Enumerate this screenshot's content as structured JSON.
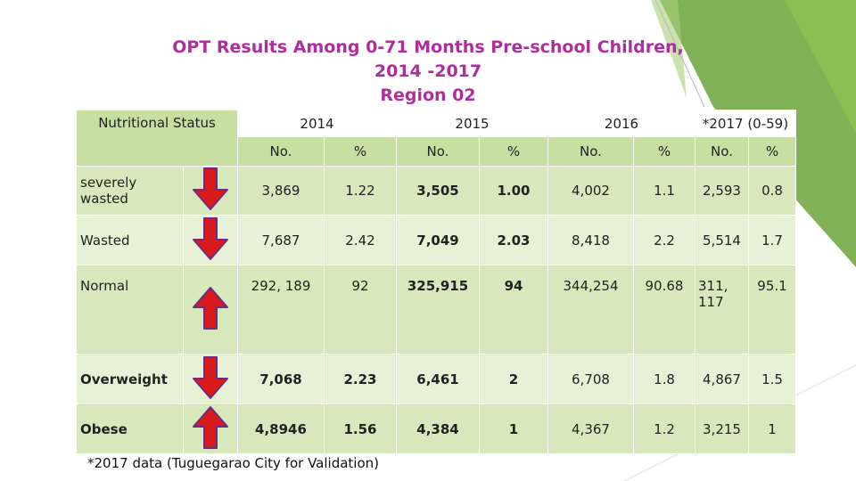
{
  "title_lines": [
    "OPT Results Among 0-71  Months Pre-school  Children,",
    "2014 -2017",
    "Region 02"
  ],
  "colors": {
    "title": "#ad2e9f",
    "accent_green": "#6aa33a",
    "arrow_red": "#d91a1a",
    "table_row": "#d8e8bd"
  },
  "table": {
    "status_header": "Nutritional Status",
    "years": [
      "2014",
      "2015",
      "2016",
      "*2017 (0-59)"
    ],
    "subheaders": [
      "No.",
      "%",
      "No.",
      "%",
      "No.",
      "%",
      "No.",
      "%"
    ],
    "rows": [
      {
        "label": "severely wasted",
        "arrow": "down",
        "cells": [
          "3,869",
          "1.22",
          "3,505",
          "1.00",
          "4,002",
          "1.1",
          "2,593",
          "0.8"
        ]
      },
      {
        "label": "Wasted",
        "arrow": "down",
        "cells": [
          "7,687",
          "2.42",
          "7,049",
          "2.03",
          "8,418",
          "2.2",
          "5,514",
          "1.7"
        ]
      },
      {
        "label": "Normal",
        "arrow": "up",
        "cells": [
          "292, 189",
          "92",
          "325,915",
          "94",
          "344,254",
          "90.68",
          "311, 117",
          "95.1"
        ]
      },
      {
        "label": "Overweight",
        "arrow": "down",
        "cells": [
          "7,068",
          "2.23",
          "6,461",
          "2",
          "6,708",
          "1.8",
          "4,867",
          "1.5"
        ]
      },
      {
        "label": "Obese",
        "arrow": "up",
        "cells": [
          "4,8946",
          "1.56",
          "4,384",
          "1",
          "4,367",
          "1.2",
          "3,215",
          "1"
        ]
      }
    ]
  },
  "footnote": "*2017 data (Tuguegarao City for Validation)"
}
